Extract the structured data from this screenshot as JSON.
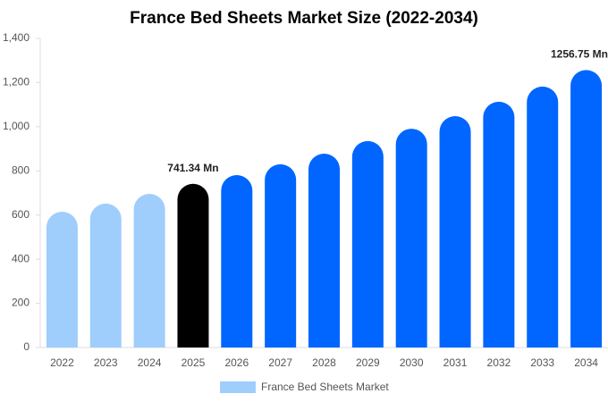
{
  "chart_data": {
    "type": "bar",
    "title": "France Bed Sheets Market Size (2022-2034)",
    "categories": [
      "2022",
      "2023",
      "2024",
      "2025",
      "2026",
      "2027",
      "2028",
      "2029",
      "2030",
      "2031",
      "2032",
      "2033",
      "2034"
    ],
    "series": [
      {
        "name": "France Bed Sheets Market",
        "color": "#9fcdfc",
        "values": [
          615,
          652,
          696,
          741.34,
          781,
          830,
          878,
          935,
          991,
          1048,
          1113,
          1182,
          1256.75
        ],
        "value_labels": [
          null,
          null,
          null,
          "741.34 Mn",
          null,
          null,
          null,
          null,
          null,
          null,
          null,
          null,
          "1256.75 Mn"
        ],
        "bar_colors": [
          "#9fcdfc",
          "#9fcdfc",
          "#9fcdfc",
          "#000000",
          "#0066ff",
          "#0066ff",
          "#0066ff",
          "#0066ff",
          "#0066ff",
          "#0066ff",
          "#0066ff",
          "#0066ff",
          "#0066ff"
        ]
      }
    ],
    "ylim": [
      0,
      1400
    ],
    "yticks": [
      0,
      200,
      400,
      600,
      800,
      {
        "value": 1000,
        "label": "1,000"
      },
      {
        "value": 1200,
        "label": "1,200"
      },
      {
        "value": 1400,
        "label": "1,400"
      }
    ],
    "grid": false,
    "legend": "bottom"
  }
}
